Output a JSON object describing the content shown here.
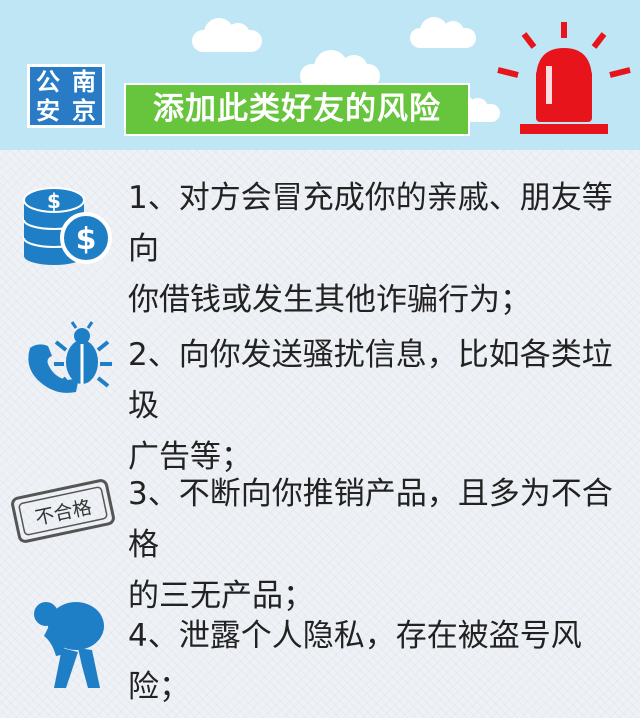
{
  "logo": {
    "chars": [
      "公",
      "南",
      "安",
      "京"
    ]
  },
  "banner": {
    "title": "添加此类好友的风险"
  },
  "items": [
    {
      "line1": "1、对方会冒充成你的亲戚、朋友等向",
      "line2": "你借钱或发生其他诈骗行为；",
      "icon": "money-coins-icon"
    },
    {
      "line1": "2、向你发送骚扰信息，比如各类垃圾",
      "line2": "广告等；",
      "icon": "bug-phone-icon"
    },
    {
      "line1": "3、不断向你推销产品，且多为不合格",
      "line2": "的三无产品；",
      "icon": "unqualified-stamp-icon"
    },
    {
      "line1": "4、泄露个人隐私，存在被盗号风险；",
      "line2": "",
      "icon": "thief-icon"
    }
  ],
  "stamp": {
    "label": "不合格"
  },
  "colors": {
    "sky": "#bfe6f4",
    "banner": "#67c43d",
    "icon_blue": "#1f7fc6",
    "alarm_red": "#e8141c"
  }
}
